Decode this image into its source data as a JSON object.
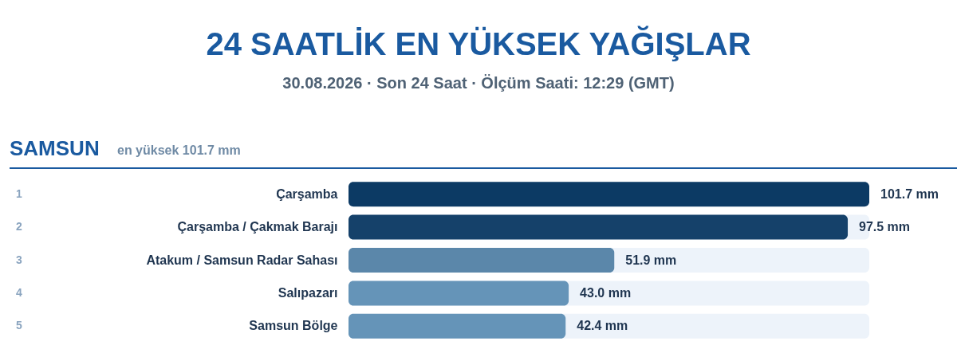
{
  "chart_data": {
    "type": "bar",
    "orientation": "horizontal",
    "title": "24 SAATLİK EN YÜKSEK YAĞIŞLAR",
    "subtitle": "30.08.2026 · Son 24 Saat · Ölçüm Saati: 12:29 (GMT)",
    "annotations": [
      "SAMSUN",
      "en yüksek 101.7 mm",
      "1",
      "2",
      "3",
      "4",
      "5"
    ],
    "categories": [
      "Çarşamba",
      "Çarşamba / Çakmak Barajı",
      "Atakum / Samsun Radar Sahası",
      "Salıpazarı",
      "Samsun Bölge"
    ],
    "values": [
      101.7,
      97.5,
      51.9,
      43.0,
      42.4
    ],
    "value_labels": [
      "101.7 mm",
      "97.5 mm",
      "51.9 mm",
      "43.0 mm",
      "42.4 mm"
    ],
    "colors": [
      "#0c3a64",
      "#15416a",
      "#5b87aa",
      "#6594b8",
      "#6594b8"
    ],
    "xlim": [
      0,
      101.7
    ],
    "tick_labels": "y",
    "grid": false
  }
}
